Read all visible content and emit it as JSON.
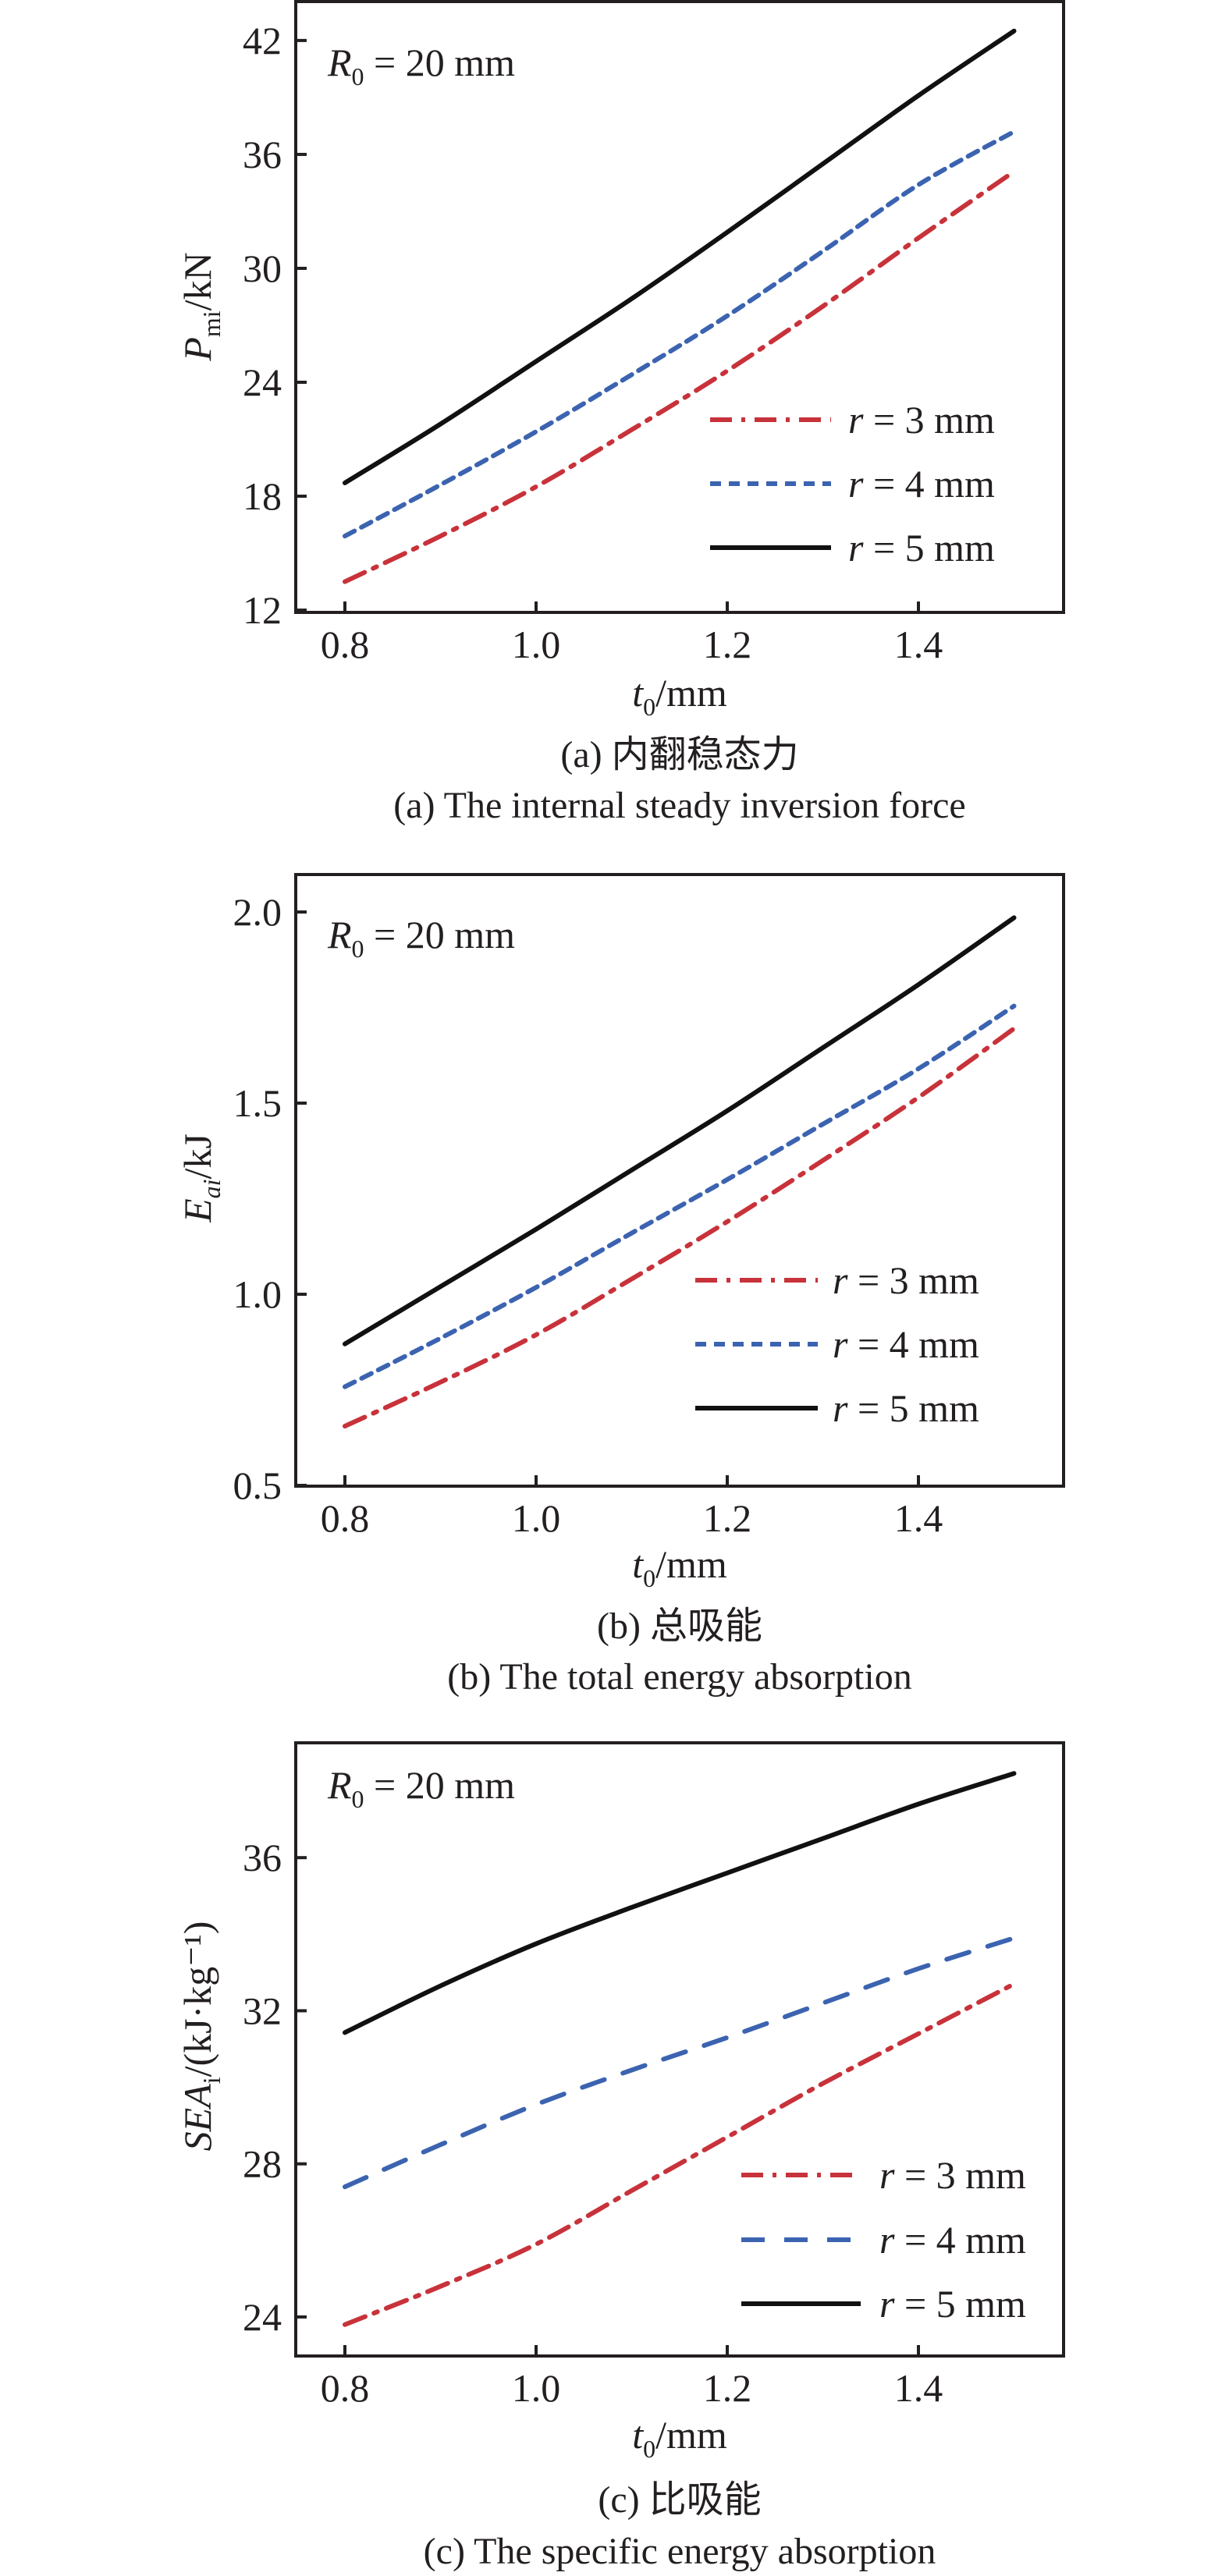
{
  "figure": {
    "panels": [
      {
        "id": "a",
        "annotation": {
          "var": "R",
          "sub": "0",
          "text": " = 20 mm"
        },
        "ylabel": {
          "var": "P",
          "sub": "mi",
          "unit": "/kN"
        },
        "xlabel": {
          "var": "t",
          "sub": "0",
          "unit": "/mm"
        },
        "caption_cn": "(a) 内翻稳态力",
        "caption_en": "(a) The internal steady inversion force"
      },
      {
        "id": "b",
        "annotation": {
          "var": "R",
          "sub": "0",
          "text": " = 20 mm"
        },
        "ylabel": {
          "var": "E",
          "sub": "ai",
          "unit": "/kJ"
        },
        "xlabel": {
          "var": "t",
          "sub": "0",
          "unit": "/mm"
        },
        "caption_cn": "(b) 总吸能",
        "caption_en": "(b) The total energy absorption"
      },
      {
        "id": "c",
        "annotation": {
          "var": "R",
          "sub": "0",
          "text": " = 20 mm"
        },
        "ylabel": {
          "var": "SEA",
          "sub": "i",
          "unit": "/(kJ·kg⁻¹)"
        },
        "xlabel": {
          "var": "t",
          "sub": "0",
          "unit": "/mm"
        },
        "caption_cn": "(c) 比吸能",
        "caption_en": "(c) The specific energy absorption"
      }
    ],
    "legend": [
      {
        "var": "r",
        "text": " = 3 mm"
      },
      {
        "var": "r",
        "text": " = 4 mm"
      },
      {
        "var": "r",
        "text": " = 5 mm"
      }
    ],
    "colors": {
      "r3": "#c8323a",
      "r4": "#3b63b0",
      "r5": "#111111",
      "axis": "#231f20"
    }
  },
  "chart_data": [
    {
      "type": "line",
      "title": "(a) The internal steady inversion force",
      "title_cn": "(a) 内翻稳态力",
      "annotation": "R0 = 20 mm",
      "xlabel": "t0/mm",
      "ylabel": "Pmi/kN",
      "xlim": [
        0.72,
        1.61
      ],
      "ylim": [
        11.88,
        44.05
      ],
      "xticks": [
        0.8,
        1.0,
        1.2,
        1.4
      ],
      "yticks": [
        12,
        18,
        24,
        30,
        36,
        42
      ],
      "grid": false,
      "legend_position": "lower right",
      "x": [
        0.8,
        0.9,
        1.0,
        1.1,
        1.2,
        1.3,
        1.4,
        1.5
      ],
      "series": [
        {
          "name": "r = 3 mm",
          "style": "dashdot",
          "color": "#c8323a",
          "values": [
            13.5,
            15.9,
            18.5,
            21.5,
            24.6,
            28.0,
            31.6,
            35.1
          ]
        },
        {
          "name": "r = 4 mm",
          "style": "dotted-dash",
          "color": "#3b63b0",
          "values": [
            15.9,
            18.6,
            21.4,
            24.4,
            27.5,
            30.9,
            34.4,
            37.2
          ]
        },
        {
          "name": "r = 5 mm",
          "style": "solid",
          "color": "#111111",
          "values": [
            18.7,
            21.8,
            25.1,
            28.4,
            31.9,
            35.5,
            39.1,
            42.5
          ]
        }
      ]
    },
    {
      "type": "line",
      "title": "(b) The total energy absorption",
      "title_cn": "(b) 总吸能",
      "annotation": "R0 = 20 mm",
      "xlabel": "t0/mm",
      "ylabel": "Eai/kJ",
      "xlim": [
        0.72,
        1.61
      ],
      "ylim": [
        0.498,
        2.098
      ],
      "xticks": [
        0.8,
        1.0,
        1.2,
        1.4
      ],
      "yticks": [
        0.5,
        1.0,
        1.5,
        2.0
      ],
      "grid": false,
      "legend_position": "lower right",
      "x": [
        0.8,
        0.9,
        1.0,
        1.1,
        1.2,
        1.3,
        1.4,
        1.5
      ],
      "series": [
        {
          "name": "r = 3 mm",
          "style": "dashdot",
          "color": "#c8323a",
          "values": [
            0.655,
            0.77,
            0.894,
            1.04,
            1.19,
            1.35,
            1.515,
            1.695
          ]
        },
        {
          "name": "r = 4 mm",
          "style": "dotted-dash",
          "color": "#3b63b0",
          "values": [
            0.758,
            0.885,
            1.018,
            1.16,
            1.3,
            1.445,
            1.59,
            1.754
          ]
        },
        {
          "name": "r = 5 mm",
          "style": "solid",
          "color": "#111111",
          "values": [
            0.87,
            1.02,
            1.17,
            1.325,
            1.48,
            1.645,
            1.81,
            1.985
          ]
        }
      ]
    },
    {
      "type": "line",
      "title": "(c) The specific energy absorption",
      "title_cn": "(c) 比吸能",
      "annotation": "R0 = 20 mm",
      "xlabel": "t0/mm",
      "ylabel": "SEAi/(kJ·kg⁻¹)",
      "xlim": [
        0.72,
        1.61
      ],
      "ylim": [
        22.98,
        39.0
      ],
      "xticks": [
        0.8,
        1.0,
        1.2,
        1.4
      ],
      "yticks": [
        24,
        28,
        32,
        36
      ],
      "grid": false,
      "legend_position": "lower right",
      "x": [
        0.8,
        0.9,
        1.0,
        1.1,
        1.2,
        1.3,
        1.4,
        1.5
      ],
      "series": [
        {
          "name": "r = 3 mm",
          "style": "dashdot",
          "color": "#c8323a",
          "values": [
            23.8,
            24.8,
            25.9,
            27.3,
            28.7,
            30.1,
            31.4,
            32.7
          ]
        },
        {
          "name": "r = 4 mm",
          "style": "long-dash",
          "color": "#3b63b0",
          "values": [
            27.4,
            28.5,
            29.55,
            30.45,
            31.3,
            32.2,
            33.1,
            33.9
          ]
        },
        {
          "name": "r = 5 mm",
          "style": "solid",
          "color": "#111111",
          "values": [
            31.43,
            32.65,
            33.75,
            34.7,
            35.6,
            36.5,
            37.4,
            38.2
          ]
        }
      ]
    }
  ]
}
